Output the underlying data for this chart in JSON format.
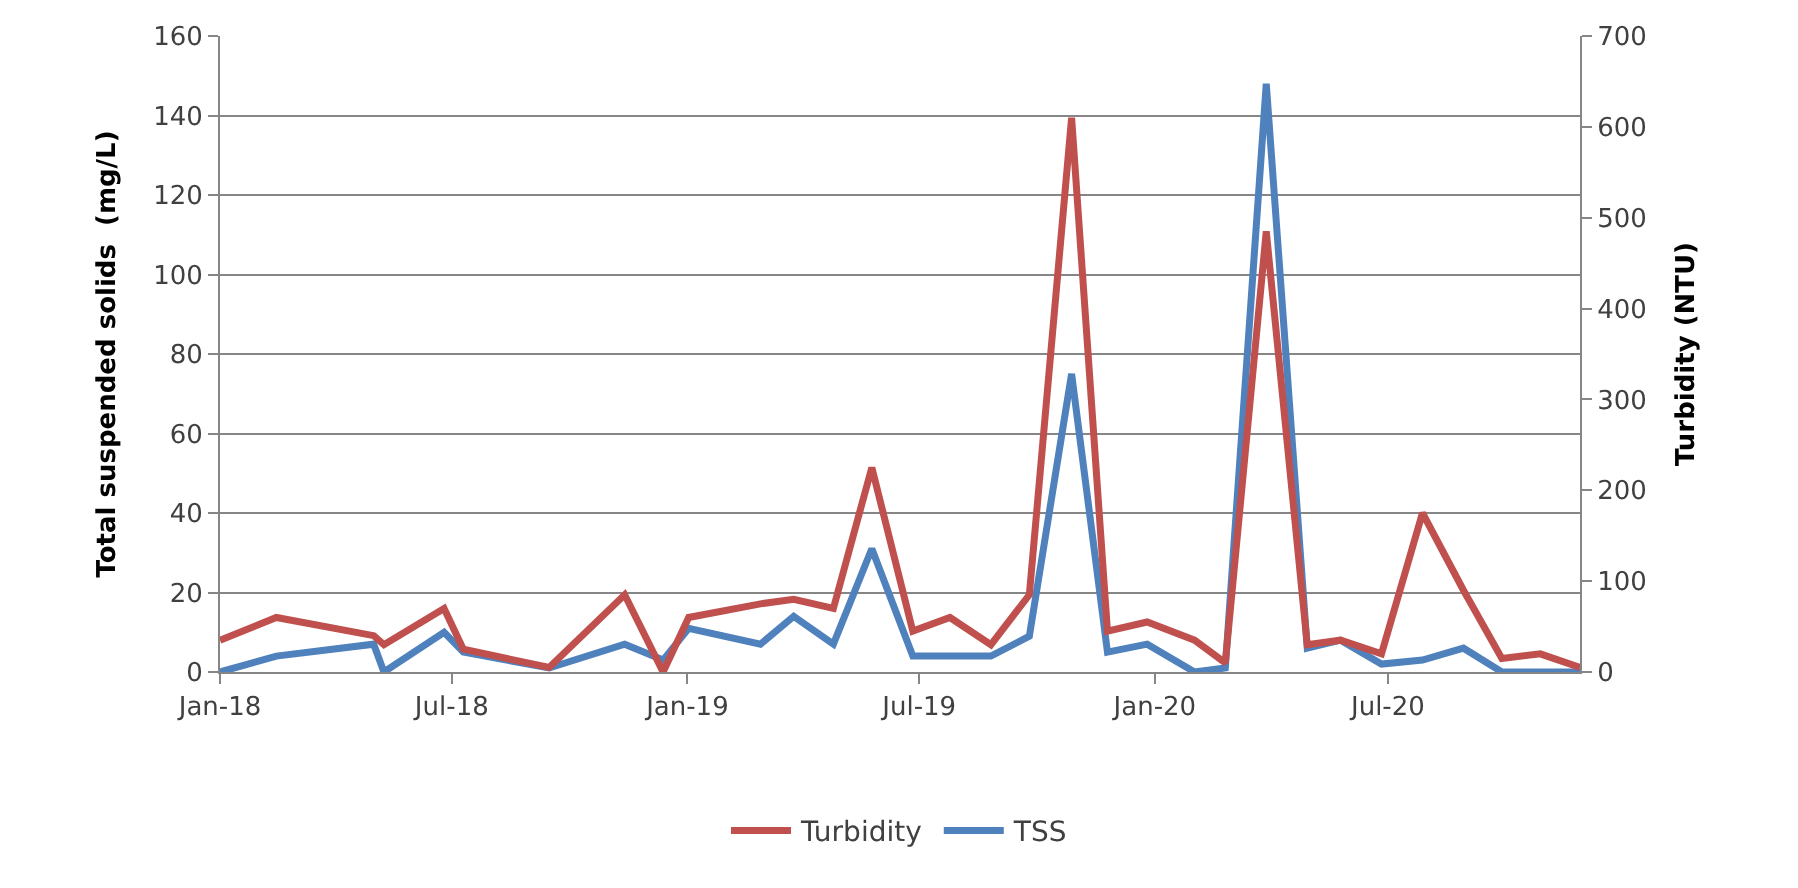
{
  "chart_data": {
    "type": "line",
    "ylabel": "Total suspended solids  (mg/L)",
    "y2label": "Turbidity (NTU)",
    "x": [
      "2018-01-01",
      "2018-02-14",
      "2018-05-01",
      "2018-05-09",
      "2018-06-25",
      "2018-07-10",
      "2018-09-15",
      "2018-11-13",
      "2018-12-13",
      "2019-01-02",
      "2019-02-27",
      "2019-03-25",
      "2019-04-25",
      "2019-05-25",
      "2019-06-26",
      "2019-07-25",
      "2019-08-26",
      "2019-09-25",
      "2019-10-28",
      "2019-11-25",
      "2019-12-26",
      "2020-02-01",
      "2020-02-25",
      "2020-03-28",
      "2020-04-29",
      "2020-05-25",
      "2020-06-26",
      "2020-07-28",
      "2020-08-29",
      "2020-09-28",
      "2020-10-28",
      "2020-11-28"
    ],
    "series": [
      {
        "name": "Turbidity",
        "color": "#c0504d",
        "axis": "y2",
        "values": [
          35,
          60,
          40,
          30,
          70,
          25,
          5,
          85,
          0,
          60,
          75,
          80,
          70,
          225,
          45,
          60,
          30,
          85,
          610,
          45,
          55,
          35,
          10,
          485,
          30,
          35,
          20,
          175,
          90,
          15,
          20,
          5
        ]
      },
      {
        "name": "TSS",
        "color": "#4f81bd",
        "values": [
          0,
          4,
          7,
          0,
          10,
          5,
          1,
          7,
          3,
          11,
          7,
          14,
          7,
          31,
          4,
          4,
          4,
          9,
          75,
          5,
          7,
          0,
          1,
          148,
          6,
          8,
          2,
          3,
          6,
          0,
          0,
          0
        ]
      }
    ],
    "xlim": [
      "2018-01-01",
      "2020-11-28"
    ],
    "xticks": [
      {
        "value": "2018-01-01",
        "label": "Jan-18"
      },
      {
        "value": "2018-07-01",
        "label": "Jul-18"
      },
      {
        "value": "2019-01-01",
        "label": "Jan-19"
      },
      {
        "value": "2019-07-01",
        "label": "Jul-19"
      },
      {
        "value": "2020-01-01",
        "label": "Jan-20"
      },
      {
        "value": "2020-07-01",
        "label": "Jul-20"
      }
    ],
    "ylim": [
      0,
      160
    ],
    "yticks": [
      0,
      20,
      40,
      60,
      80,
      100,
      120,
      140,
      160
    ],
    "y2lim": [
      0,
      700
    ],
    "y2ticks": [
      0,
      100,
      200,
      300,
      400,
      500,
      600,
      700
    ],
    "grid": "y",
    "legend": "bottom",
    "marker": "none",
    "line_style": "solid"
  }
}
